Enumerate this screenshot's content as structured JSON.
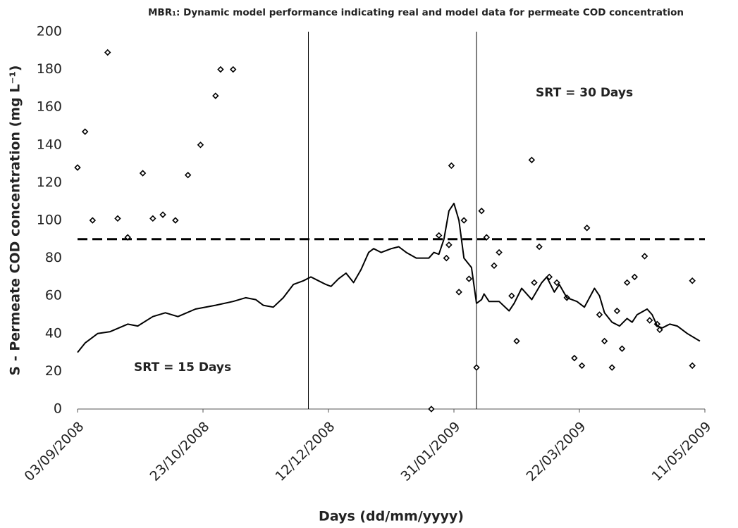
{
  "chart_data": {
    "type": "scatter",
    "title": "MBR₁: Dynamic model performance indicating real and model data for permeate COD concentration",
    "x_label": "Days (dd/mm/yyyy)",
    "y_label": "S - Permeate COD concentration (mg L⁻¹)",
    "annotations": [
      "SRT = 15 Days",
      "SRT = 30 Days"
    ],
    "xlim": [
      "2008-09-03",
      "2009-05-11"
    ],
    "xticks": [
      {
        "value": "2008-09-03",
        "label": "03/09/2008"
      },
      {
        "value": "2008-10-23",
        "label": "23/10/2008"
      },
      {
        "value": "2008-12-12",
        "label": "12/12/2008"
      },
      {
        "value": "2009-01-31",
        "label": "31/01/2009"
      },
      {
        "value": "2009-03-22",
        "label": "22/03/2009"
      },
      {
        "value": "2009-05-11",
        "label": "11/05/2009"
      }
    ],
    "ylim": [
      0,
      200
    ],
    "yticks": [
      0,
      20,
      40,
      60,
      80,
      100,
      120,
      140,
      160,
      180,
      200
    ],
    "grid": false,
    "reference_lines": [
      {
        "axis": "y",
        "value": 90,
        "style": "dashed"
      },
      {
        "axis": "x",
        "value": "2008-12-04",
        "style": "solid"
      },
      {
        "axis": "x",
        "value": "2009-02-09",
        "style": "solid"
      }
    ],
    "series": [
      {
        "type": "scatter",
        "color": "#000000",
        "x": [
          "2008-09-03",
          "2008-09-06",
          "2008-09-09",
          "2008-09-15",
          "2008-09-19",
          "2008-09-23",
          "2008-09-29",
          "2008-10-03",
          "2008-10-07",
          "2008-10-12",
          "2008-10-17",
          "2008-10-22",
          "2008-10-28",
          "2008-10-30",
          "2008-11-04",
          "2009-01-22",
          "2009-01-25",
          "2009-01-28",
          "2009-01-29",
          "2009-01-30",
          "2009-02-02",
          "2009-02-04",
          "2009-02-06",
          "2009-02-09",
          "2009-02-11",
          "2009-02-13",
          "2009-02-16",
          "2009-02-18",
          "2009-02-23",
          "2009-02-25",
          "2009-03-03",
          "2009-03-04",
          "2009-03-06",
          "2009-03-10",
          "2009-03-13",
          "2009-03-17",
          "2009-03-20",
          "2009-03-23",
          "2009-03-25",
          "2009-03-30",
          "2009-04-01",
          "2009-04-04",
          "2009-04-06",
          "2009-04-08",
          "2009-04-10",
          "2009-04-13",
          "2009-04-17",
          "2009-04-19",
          "2009-04-22",
          "2009-04-23",
          "2009-05-06",
          "2009-05-06"
        ],
        "values": [
          128,
          147,
          100,
          189,
          101,
          91,
          125,
          101,
          103,
          100,
          124,
          140,
          166,
          180,
          180,
          0,
          92,
          80,
          87,
          129,
          62,
          100,
          69,
          22,
          105,
          91,
          76,
          83,
          60,
          36,
          132,
          67,
          86,
          70,
          67,
          59,
          27,
          23,
          96,
          50,
          36,
          22,
          52,
          32,
          67,
          70,
          81,
          47,
          45,
          42,
          68,
          23
        ]
      },
      {
        "type": "line",
        "color": "#000000",
        "x": [
          "2008-09-03",
          "2008-09-06",
          "2008-09-11",
          "2008-09-16",
          "2008-09-23",
          "2008-09-27",
          "2008-10-03",
          "2008-10-08",
          "2008-10-13",
          "2008-10-20",
          "2008-10-28",
          "2008-11-04",
          "2008-11-09",
          "2008-11-13",
          "2008-11-16",
          "2008-11-20",
          "2008-11-24",
          "2008-11-28",
          "2008-12-02",
          "2008-12-05",
          "2008-12-08",
          "2008-12-11",
          "2008-12-13",
          "2008-12-16",
          "2008-12-19",
          "2008-12-22",
          "2008-12-25",
          "2008-12-28",
          "2008-12-30",
          "2009-01-02",
          "2009-01-06",
          "2009-01-09",
          "2009-01-12",
          "2009-01-16",
          "2009-01-21",
          "2009-01-23",
          "2009-01-25",
          "2009-01-27",
          "2009-01-29",
          "2009-01-31",
          "2009-02-02",
          "2009-02-04",
          "2009-02-07",
          "2009-02-09",
          "2009-02-11",
          "2009-02-12",
          "2009-02-14",
          "2009-02-18",
          "2009-02-22",
          "2009-02-24",
          "2009-02-27",
          "2009-03-03",
          "2009-03-07",
          "2009-03-09",
          "2009-03-12",
          "2009-03-14",
          "2009-03-17",
          "2009-03-21",
          "2009-03-24",
          "2009-03-28",
          "2009-03-30",
          "2009-04-01",
          "2009-04-04",
          "2009-04-07",
          "2009-04-10",
          "2009-04-12",
          "2009-04-14",
          "2009-04-18",
          "2009-04-20",
          "2009-04-22",
          "2009-04-24",
          "2009-04-27",
          "2009-04-30",
          "2009-05-04",
          "2009-05-09"
        ],
        "values": [
          30,
          35,
          40,
          41,
          45,
          44,
          49,
          51,
          49,
          53,
          55,
          57,
          59,
          58,
          55,
          54,
          59,
          66,
          68,
          70,
          68,
          66,
          65,
          69,
          72,
          67,
          74,
          83,
          85,
          83,
          85,
          86,
          83,
          80,
          80,
          83,
          82,
          90,
          105,
          109,
          100,
          80,
          75,
          56,
          58,
          61,
          57,
          57,
          52,
          56,
          64,
          58,
          67,
          70,
          62,
          66,
          59,
          57,
          54,
          64,
          60,
          51,
          46,
          44,
          48,
          46,
          50,
          53,
          50,
          44,
          43,
          45,
          44,
          40,
          36
        ]
      }
    ]
  }
}
